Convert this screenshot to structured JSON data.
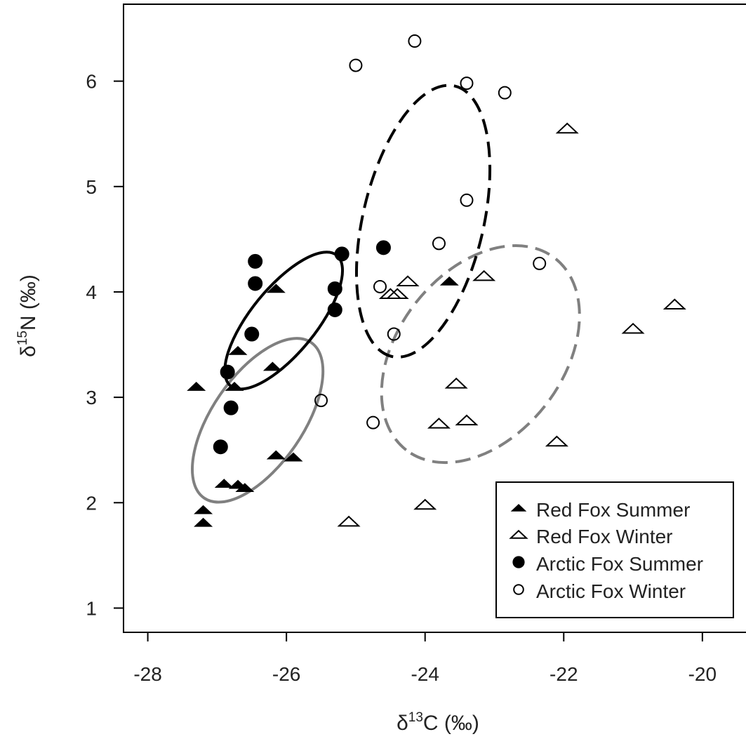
{
  "chart_data": {
    "type": "scatter",
    "xlabel": {
      "prefix": "δ",
      "sup": "13",
      "suffix": "C (‰)"
    },
    "ylabel": {
      "prefix": "δ",
      "sup": "15",
      "suffix": "N (‰)"
    },
    "xlim": [
      -28.35,
      -19.3
    ],
    "ylim": [
      0.77,
      6.73
    ],
    "x_ticks": [
      -28,
      -26,
      -24,
      -22,
      -20
    ],
    "x_tick_labels": [
      "-28",
      "-26",
      "-24",
      "-22",
      "-20"
    ],
    "y_ticks": [
      1,
      2,
      3,
      4,
      5,
      6
    ],
    "y_tick_labels": [
      "1",
      "2",
      "3",
      "4",
      "5",
      "6"
    ],
    "grid": false,
    "legend_position": "bottom-right",
    "series": [
      {
        "name": "Red Fox Summer",
        "marker": "triangle-filled",
        "color": "#000000",
        "points": [
          [
            -27.3,
            3.1
          ],
          [
            -27.2,
            1.93
          ],
          [
            -27.2,
            1.81
          ],
          [
            -26.9,
            2.18
          ],
          [
            -26.7,
            2.17
          ],
          [
            -26.6,
            2.14
          ],
          [
            -26.75,
            3.1
          ],
          [
            -26.7,
            3.44
          ],
          [
            -26.15,
            4.03
          ],
          [
            -26.2,
            3.29
          ],
          [
            -26.15,
            2.45
          ],
          [
            -25.9,
            2.43
          ],
          [
            -23.65,
            4.1
          ]
        ]
      },
      {
        "name": "Red Fox Winter",
        "marker": "triangle-open",
        "color": "#000000",
        "points": [
          [
            -25.1,
            1.82
          ],
          [
            -24.5,
            3.98
          ],
          [
            -24.4,
            3.98
          ],
          [
            -24.25,
            4.1
          ],
          [
            -24.0,
            1.98
          ],
          [
            -23.8,
            2.75
          ],
          [
            -23.55,
            3.13
          ],
          [
            -23.4,
            2.78
          ],
          [
            -23.15,
            4.15
          ],
          [
            -22.1,
            2.58
          ],
          [
            -21.95,
            5.55
          ],
          [
            -21.0,
            3.65
          ],
          [
            -20.4,
            3.88
          ]
        ]
      },
      {
        "name": "Arctic Fox Summer",
        "marker": "circle-filled",
        "color": "#000000",
        "points": [
          [
            -26.45,
            4.29
          ],
          [
            -26.45,
            4.08
          ],
          [
            -26.5,
            3.6
          ],
          [
            -26.85,
            3.24
          ],
          [
            -26.8,
            2.9
          ],
          [
            -26.95,
            2.53
          ],
          [
            -25.3,
            4.03
          ],
          [
            -25.3,
            3.83
          ],
          [
            -25.2,
            4.36
          ],
          [
            -24.6,
            4.42
          ]
        ]
      },
      {
        "name": "Arctic Fox Winter",
        "marker": "circle-open",
        "color": "#000000",
        "points": [
          [
            -25.5,
            2.97
          ],
          [
            -25.0,
            6.15
          ],
          [
            -24.75,
            2.76
          ],
          [
            -24.65,
            4.05
          ],
          [
            -24.45,
            3.6
          ],
          [
            -24.15,
            6.38
          ],
          [
            -23.8,
            4.46
          ],
          [
            -23.4,
            5.98
          ],
          [
            -23.4,
            4.87
          ],
          [
            -22.85,
            5.89
          ],
          [
            -22.35,
            4.27
          ]
        ]
      }
    ],
    "ellipses": [
      {
        "series": "Red Fox Summer",
        "color": "#808080",
        "dash": false
      },
      {
        "series": "Red Fox Winter",
        "color": "#808080",
        "dash": true
      },
      {
        "series": "Arctic Fox Summer",
        "color": "#000000",
        "dash": false
      },
      {
        "series": "Arctic Fox Winter",
        "color": "#000000",
        "dash": true
      }
    ]
  }
}
